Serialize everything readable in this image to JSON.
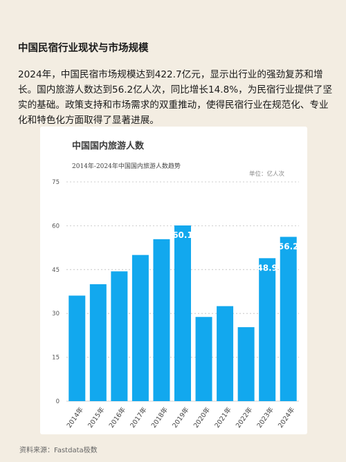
{
  "header": {
    "title": "中国民宿行业现状与市场规模",
    "paragraph": "2024年，中国民宿市场规模达到422.7亿元，显示出行业的强劲复苏和增长。国内旅游人数达到56.2亿人次，同比增长14.8%，为民宿行业提供了坚实的基础。政策支持和市场需求的双重推动，使得民宿行业在规范化、专业化和特色化方面取得了显著进展。"
  },
  "chart_data": {
    "type": "bar",
    "title": "中国国内旅游人数",
    "subtitle": "2014年-2024年中国国内旅游人数趋势",
    "unit": "单位：亿人次",
    "categories": [
      "2014年",
      "2015年",
      "2016年",
      "2017年",
      "2018年",
      "2019年",
      "2020年",
      "2021年",
      "2022年",
      "2023年",
      "2024年"
    ],
    "values": [
      36.1,
      40.0,
      44.4,
      50.0,
      55.4,
      60.1,
      28.8,
      32.5,
      25.3,
      48.9,
      56.2
    ],
    "data_labels": {
      "5": "60.1",
      "9": "48.9",
      "10": "56.2"
    },
    "y_ticks": [
      "75",
      "60",
      "45",
      "30",
      "15",
      "0"
    ],
    "ylim": [
      0,
      75
    ],
    "bar_color": "#12a8ee",
    "grid": true
  },
  "footer": {
    "source": "资料来源：Fastdata极数"
  }
}
